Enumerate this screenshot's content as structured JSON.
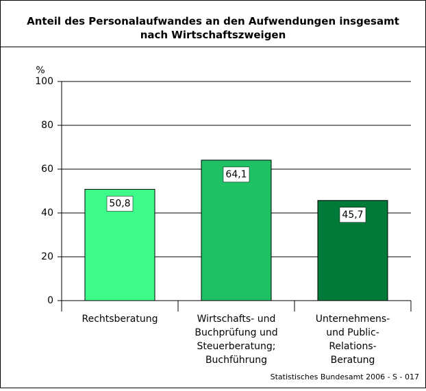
{
  "chart_data": {
    "type": "bar",
    "title": "Anteil des Personalaufwandes an den Aufwendungen insgesamt\nnach Wirtschaftszweigen",
    "y_label": "%",
    "categories": [
      "Rechtsberatung",
      "Wirtschafts- und\nBuchprüfung und\nSteuerberatung;\nBuchführung",
      "Unternehmens-\nund Public-\nRelations-\nBeratung"
    ],
    "values": [
      50.8,
      64.1,
      45.7
    ],
    "value_labels": [
      "50,8",
      "64,1",
      "45,7"
    ],
    "colors": [
      "#3dfc8a",
      "#1ec164",
      "#007a38"
    ],
    "ylim": [
      0,
      100
    ],
    "yticks": [
      0,
      20,
      40,
      60,
      80,
      100
    ],
    "grid": true,
    "source": "Statistisches Bundesamt 2006 - S - 017"
  }
}
